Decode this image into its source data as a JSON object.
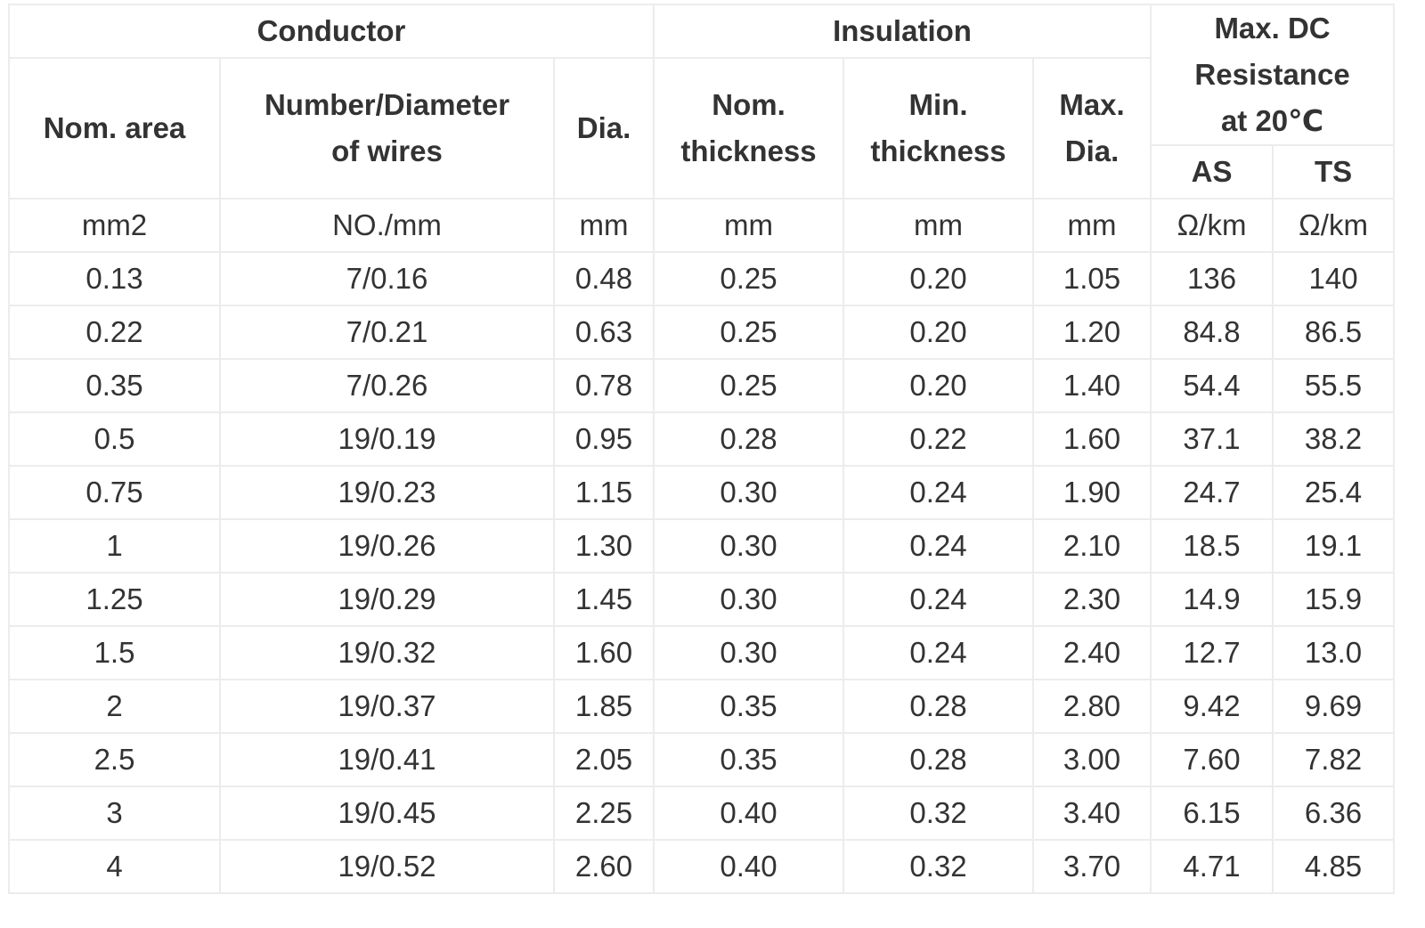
{
  "table": {
    "groups": {
      "conductor": "Conductor",
      "insulation": "Insulation",
      "resistance": "Max. DC\nResistance\nat 20℃"
    },
    "headers": {
      "nom_area": "Nom. area",
      "number_diameter": "Number/Diameter\nof wires",
      "dia": "Dia.",
      "nom_thickness": "Nom.\nthickness",
      "min_thickness": "Min.\nthickness",
      "max_dia": "Max.\nDia.",
      "as": "AS",
      "ts": "TS"
    },
    "units": [
      "mm2",
      "NO./mm",
      "mm",
      "mm",
      "mm",
      "mm",
      "Ω/km",
      "Ω/km"
    ],
    "rows": [
      [
        "0.13",
        "7/0.16",
        "0.48",
        "0.25",
        "0.20",
        "1.05",
        "136",
        "140"
      ],
      [
        "0.22",
        "7/0.21",
        "0.63",
        "0.25",
        "0.20",
        "1.20",
        "84.8",
        "86.5"
      ],
      [
        "0.35",
        "7/0.26",
        "0.78",
        "0.25",
        "0.20",
        "1.40",
        "54.4",
        "55.5"
      ],
      [
        "0.5",
        "19/0.19",
        "0.95",
        "0.28",
        "0.22",
        "1.60",
        "37.1",
        "38.2"
      ],
      [
        "0.75",
        "19/0.23",
        "1.15",
        "0.30",
        "0.24",
        "1.90",
        "24.7",
        "25.4"
      ],
      [
        "1",
        "19/0.26",
        "1.30",
        "0.30",
        "0.24",
        "2.10",
        "18.5",
        "19.1"
      ],
      [
        "1.25",
        "19/0.29",
        "1.45",
        "0.30",
        "0.24",
        "2.30",
        "14.9",
        "15.9"
      ],
      [
        "1.5",
        "19/0.32",
        "1.60",
        "0.30",
        "0.24",
        "2.40",
        "12.7",
        "13.0"
      ],
      [
        "2",
        "19/0.37",
        "1.85",
        "0.35",
        "0.28",
        "2.80",
        "9.42",
        "9.69"
      ],
      [
        "2.5",
        "19/0.41",
        "2.05",
        "0.35",
        "0.28",
        "3.00",
        "7.60",
        "7.82"
      ],
      [
        "3",
        "19/0.45",
        "2.25",
        "0.40",
        "0.32",
        "3.40",
        "6.15",
        "6.36"
      ],
      [
        "4",
        "19/0.52",
        "2.60",
        "0.40",
        "0.32",
        "3.70",
        "4.71",
        "4.85"
      ]
    ]
  },
  "colors": {
    "border": "#ececec",
    "text": "#333333",
    "background": "#ffffff"
  }
}
